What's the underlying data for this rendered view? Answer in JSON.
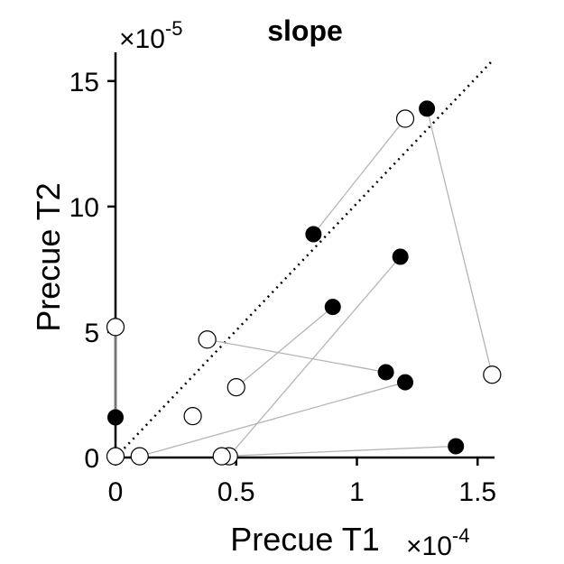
{
  "chart_data": {
    "type": "scatter",
    "title": "slope",
    "xlabel": "Precue T1",
    "ylabel": "Precue T2",
    "x_exponent": "×10",
    "x_exponent_power": "-4",
    "y_exponent": "×10",
    "y_exponent_power": "-5",
    "xlim": [
      0,
      1.57
    ],
    "ylim": [
      0,
      16
    ],
    "x_ticks": [
      "0",
      "0.5",
      "1",
      "1.5"
    ],
    "y_ticks": [
      "0",
      "5",
      "10",
      "15"
    ],
    "x_tick_values": [
      0,
      0.5,
      1,
      1.5
    ],
    "y_tick_values": [
      0,
      5,
      10,
      15
    ],
    "diagonal": "dotted",
    "legend": "none",
    "grid": false,
    "colors": {
      "filled": "#000000",
      "open": "#ffffff",
      "connector": "#b5b5b5"
    },
    "pairs": [
      {
        "filled": [
          0.0,
          1.6
        ],
        "open": [
          0.0,
          5.2
        ]
      },
      {
        "filled": [
          0.82,
          8.9
        ],
        "open": [
          1.2,
          13.5
        ]
      },
      {
        "filled": [
          1.29,
          13.9
        ],
        "open": [
          1.56,
          3.3
        ]
      },
      {
        "filled": [
          1.12,
          3.4
        ],
        "open": [
          0.38,
          4.7
        ]
      },
      {
        "filled": [
          0.9,
          6.0
        ],
        "open": [
          0.5,
          2.8
        ]
      },
      {
        "filled": [
          1.18,
          8.0
        ],
        "open": [
          0.47,
          0.05
        ]
      },
      {
        "filled": [
          1.2,
          3.0
        ],
        "open": [
          0.1,
          0.05
        ]
      },
      {
        "filled": [
          1.41,
          0.45
        ],
        "open": [
          0.44,
          0.05
        ]
      }
    ],
    "unpaired_open": [
      [
        0.0,
        0.05
      ],
      [
        0.32,
        1.65
      ]
    ]
  }
}
